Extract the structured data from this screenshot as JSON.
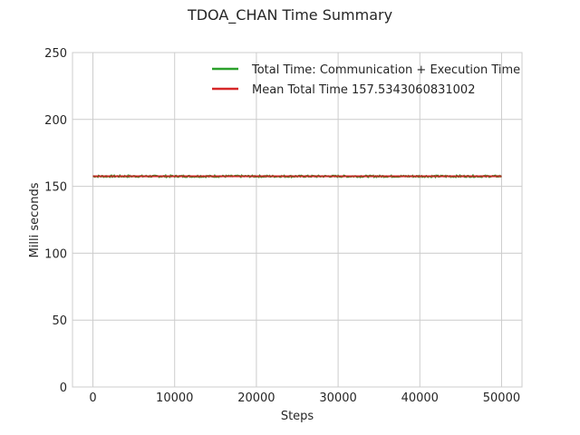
{
  "chart_data": {
    "type": "line",
    "title": "TDOA_CHAN Time Summary",
    "xlabel": "Steps",
    "ylabel": "Milli seconds",
    "xlim": [
      -2500,
      52500
    ],
    "ylim": [
      0,
      250
    ],
    "xticks": [
      0,
      10000,
      20000,
      30000,
      40000,
      50000
    ],
    "xtick_labels": [
      "0",
      "10000",
      "20000",
      "30000",
      "40000",
      "50000"
    ],
    "yticks": [
      0,
      50,
      100,
      150,
      200,
      250
    ],
    "ytick_labels": [
      "0",
      "50",
      "100",
      "150",
      "200",
      "250"
    ],
    "grid": true,
    "legend_position": "top-right",
    "series": [
      {
        "name": "Total Time: Communication + Execution Time",
        "color": "#2ca02c",
        "x": [
          0,
          50000
        ],
        "y_approx": 157.5,
        "y_noise": 0.6
      },
      {
        "name": "Mean Total Time 157.5343060831002",
        "color": "#d62728",
        "x": [
          0,
          50000
        ],
        "y": [
          157.5343060831002,
          157.5343060831002
        ]
      }
    ]
  }
}
